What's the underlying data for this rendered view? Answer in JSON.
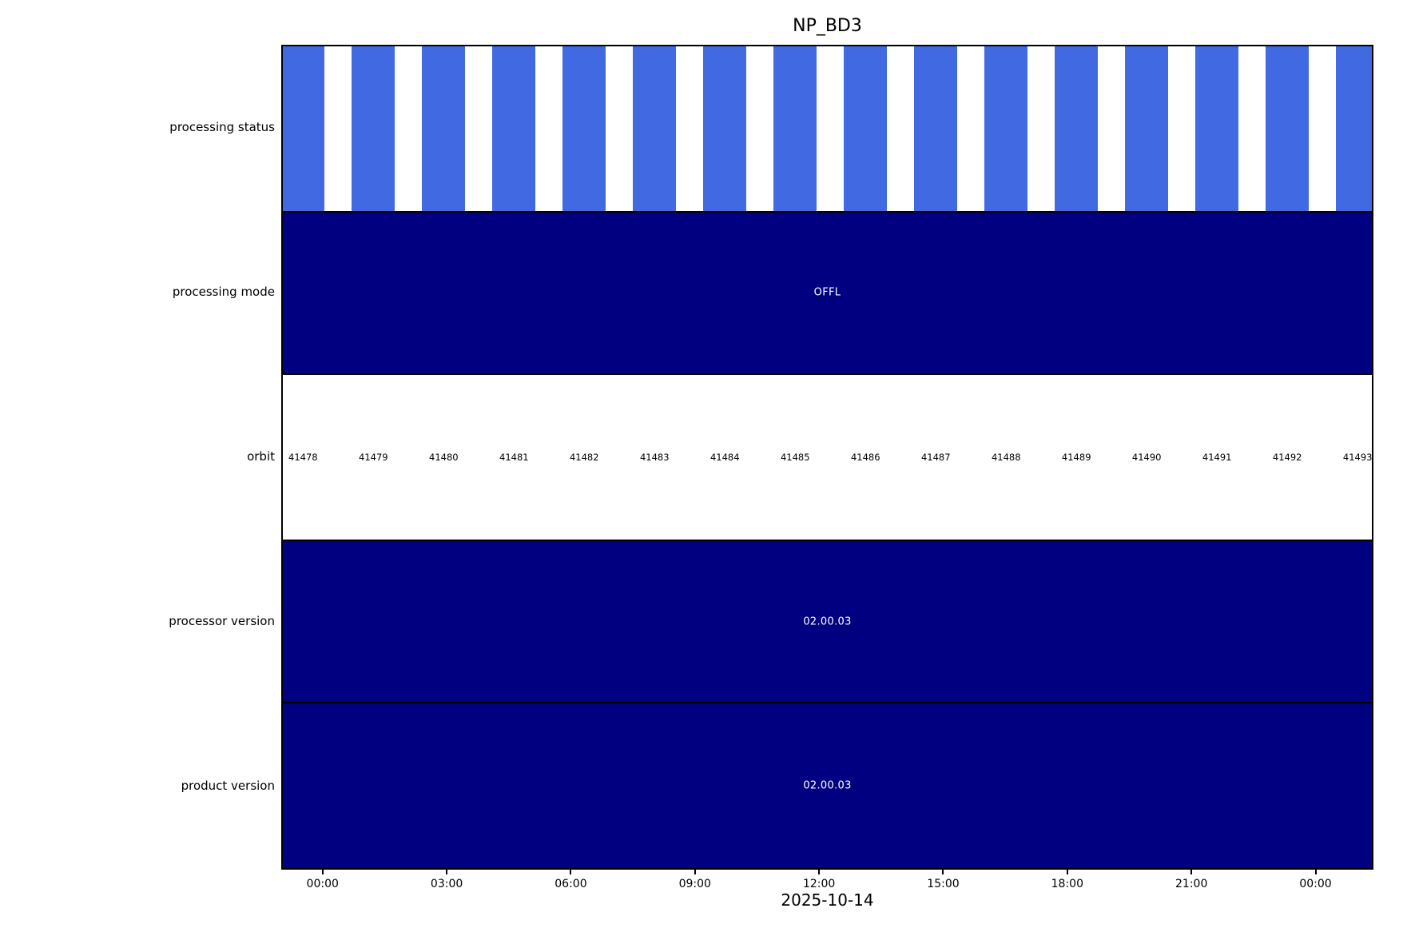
{
  "chart_data": {
    "type": "timeline",
    "title": "NP_BD3",
    "xlabel": "2025-10-14",
    "x_axis": {
      "tick_labels": [
        "00:00",
        "03:00",
        "06:00",
        "09:00",
        "12:00",
        "15:00",
        "18:00",
        "21:00",
        "00:00"
      ],
      "tick_hours": [
        0,
        3,
        6,
        9,
        12,
        15,
        18,
        21,
        24
      ],
      "range_hours": [
        -0.98,
        25.38
      ],
      "grid": false
    },
    "orbit_track": {
      "first_orbit": 41478,
      "last_orbit": 41493,
      "first_center_hour": -0.49,
      "period_hours": 1.7017,
      "bar_width_hours": 1.04
    },
    "rows": [
      {
        "key": "processing_status",
        "label": "processing status",
        "type": "bars",
        "bar_color": "#4169e1",
        "background": "#ffffff"
      },
      {
        "key": "processing_mode",
        "label": "processing mode",
        "type": "block",
        "fill": "#000080",
        "value": "OFFL",
        "text_color": "#ffffff"
      },
      {
        "key": "orbit",
        "label": "orbit",
        "type": "labels",
        "background": "#ffffff",
        "text_color": "#000000",
        "values": [
          "41478",
          "41479",
          "41480",
          "41481",
          "41482",
          "41483",
          "41484",
          "41485",
          "41486",
          "41487",
          "41488",
          "41489",
          "41490",
          "41491",
          "41492",
          "41493"
        ]
      },
      {
        "key": "processor_version",
        "label": "processor version",
        "type": "block",
        "fill": "#000080",
        "value": "02.00.03",
        "text_color": "#ffffff"
      },
      {
        "key": "product_version",
        "label": "product version",
        "type": "block",
        "fill": "#000080",
        "value": "02.00.03",
        "text_color": "#ffffff"
      }
    ],
    "colors": {
      "axis": "#000000",
      "figure_background": "#ffffff"
    }
  }
}
